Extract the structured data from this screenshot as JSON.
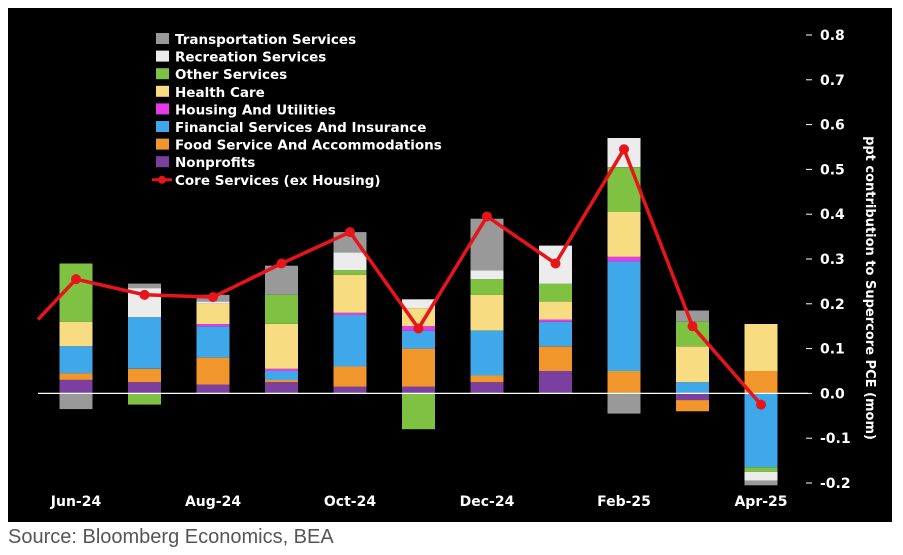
{
  "source": "Source: Bloomberg Economics, BEA",
  "chart_data": {
    "type": "bar",
    "stacked": true,
    "categories": [
      "Jun-24",
      "Jul-24",
      "Aug-24",
      "Sep-24",
      "Oct-24",
      "Nov-24",
      "Dec-24",
      "Jan-25",
      "Feb-25",
      "Mar-25",
      "Apr-25"
    ],
    "x_tick_labels": [
      "Jun-24",
      "Aug-24",
      "Oct-24",
      "Dec-24",
      "Feb-25",
      "Apr-25"
    ],
    "ylabel": "ppt contribution to Supercore PCE (mom)",
    "ylim": [
      -0.2,
      0.8
    ],
    "y_ticks": [
      -0.2,
      -0.1,
      0.0,
      0.1,
      0.2,
      0.3,
      0.4,
      0.5,
      0.6,
      0.7,
      0.8
    ],
    "y_tick_labels": [
      "-0.2",
      "-0.1",
      "0.0",
      "0.1",
      "0.2",
      "0.3",
      "0.4",
      "0.5",
      "0.6",
      "0.7",
      "0.8"
    ],
    "y_axis_side": "right",
    "grid": false,
    "legend_position": "top-left",
    "series": [
      {
        "name": "Nonprofits",
        "color": "#7b3fa0",
        "values": [
          0.03,
          0.025,
          0.02,
          0.025,
          0.015,
          0.015,
          0.025,
          0.05,
          0.0,
          -0.015,
          0.0
        ]
      },
      {
        "name": "Food Service And Accommodations",
        "color": "#f0962a",
        "values": [
          0.015,
          0.03,
          0.06,
          0.005,
          0.045,
          0.085,
          0.015,
          0.055,
          0.05,
          -0.025,
          0.05
        ]
      },
      {
        "name": "Financial Services And Insurance",
        "color": "#3ea8ea",
        "values": [
          0.06,
          0.115,
          0.07,
          0.02,
          0.115,
          0.04,
          0.1,
          0.055,
          0.245,
          0.025,
          -0.165
        ]
      },
      {
        "name": "Housing And Utilities",
        "color": "#e63ae6",
        "values": [
          0.0,
          0.0,
          0.005,
          0.005,
          0.005,
          0.01,
          0.0,
          0.005,
          0.01,
          0.0,
          0.0
        ]
      },
      {
        "name": "Health Care",
        "color": "#f8dc82",
        "values": [
          0.055,
          0.0,
          0.045,
          0.1,
          0.085,
          0.04,
          0.08,
          0.04,
          0.1,
          0.08,
          0.105
        ]
      },
      {
        "name": "Other Services",
        "color": "#7fc241",
        "values": [
          0.13,
          -0.025,
          0.0,
          0.065,
          0.01,
          -0.08,
          0.035,
          0.04,
          0.1,
          0.055,
          -0.01
        ]
      },
      {
        "name": "Recreation Services",
        "color": "#ececec",
        "values": [
          0.0,
          0.065,
          0.005,
          0.0,
          0.04,
          0.02,
          0.02,
          0.085,
          0.065,
          0.0,
          -0.02
        ]
      },
      {
        "name": "Transportation Services",
        "color": "#999999",
        "values": [
          -0.035,
          0.01,
          0.015,
          0.065,
          0.045,
          0.0,
          0.115,
          0.0,
          -0.045,
          0.025,
          -0.01
        ]
      }
    ],
    "legend_order": [
      "Transportation Services",
      "Recreation Services",
      "Other Services",
      "Health Care",
      "Housing And Utilities",
      "Financial Services And Insurance",
      "Food Service And Accommodations",
      "Nonprofits",
      "Core Services (ex Housing)"
    ],
    "line": {
      "name": "Core Services (ex Housing)",
      "color": "#e8141c",
      "values": [
        0.255,
        0.22,
        0.215,
        0.29,
        0.36,
        0.145,
        0.395,
        0.29,
        0.545,
        0.15,
        -0.025
      ],
      "extends_left_to": 0.165
    }
  }
}
